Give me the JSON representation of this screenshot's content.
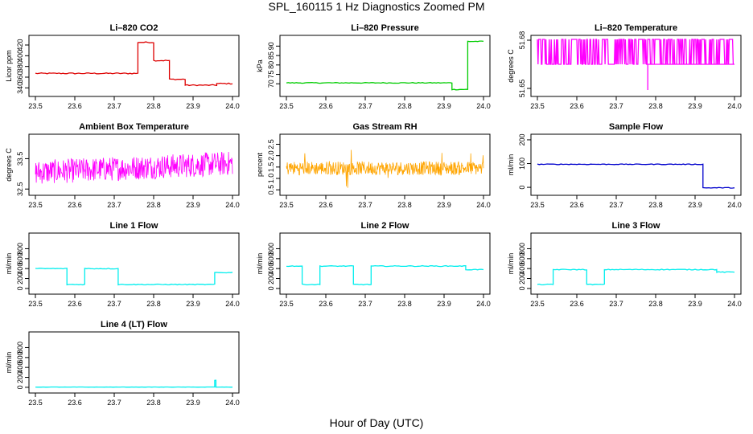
{
  "title": "SPL_160115  1 Hz Diagnostics Zoomed PM",
  "xlabel": "Hour of Day (UTC)",
  "chart_data": [
    {
      "type": "line",
      "title": "Li–820 CO2",
      "ylabel": "Licor ppm",
      "color": "#dd0000",
      "xticks": [
        "23.5",
        "23.6",
        "23.7",
        "23.8",
        "23.9",
        "24.0"
      ],
      "xlim": [
        23.5,
        24.0
      ],
      "ylim": [
        330,
        432
      ],
      "yticks": [
        "340",
        "360",
        "380",
        "400",
        "420"
      ],
      "noise": 1,
      "segments": [
        [
          23.5,
          23.76,
          367
        ],
        [
          23.76,
          23.8,
          425
        ],
        [
          23.8,
          23.84,
          391
        ],
        [
          23.84,
          23.88,
          356
        ],
        [
          23.88,
          23.96,
          345
        ],
        [
          23.96,
          24.0,
          348
        ]
      ]
    },
    {
      "type": "line",
      "title": "Li–820 Pressure",
      "ylabel": "kPa",
      "color": "#00cc00",
      "xticks": [
        "23.5",
        "23.6",
        "23.7",
        "23.8",
        "23.9",
        "24.0"
      ],
      "xlim": [
        23.5,
        24.0
      ],
      "ylim": [
        65,
        94
      ],
      "yticks": [
        "70",
        "75",
        "80",
        "85",
        "90"
      ],
      "noise": 0.2,
      "segments": [
        [
          23.5,
          23.92,
          70.5
        ],
        [
          23.92,
          23.96,
          67
        ],
        [
          23.96,
          24.0,
          92.5
        ]
      ]
    },
    {
      "type": "line",
      "title": "Li–820 Temperature",
      "ylabel": "degrees C",
      "color": "#ff00ff",
      "xticks": [
        "23.5",
        "23.6",
        "23.7",
        "23.8",
        "23.9",
        "24.0"
      ],
      "xlim": [
        23.5,
        24.0
      ],
      "ylim": [
        51.647,
        51.681
      ],
      "yticks": [
        "51.65",
        "51.68"
      ],
      "noise": 0,
      "segments": [
        [
          23.5,
          24.0,
          51.665
        ]
      ]
    },
    {
      "type": "line",
      "title": "Ambient Box Temperature",
      "ylabel": "degrees C",
      "color": "#ff00ff",
      "xticks": [
        "23.5",
        "23.6",
        "23.7",
        "23.8",
        "23.9",
        "24.0"
      ],
      "xlim": [
        23.5,
        24.0
      ],
      "ylim": [
        32.4,
        34.2
      ],
      "yticks": [
        "32.5",
        "33.5"
      ],
      "noise": 0.25,
      "segments": [
        [
          23.5,
          24.0,
          33.2
        ]
      ]
    },
    {
      "type": "line",
      "title": "Gas Stream RH",
      "ylabel": "percent",
      "color": "#ffa500",
      "xticks": [
        "23.5",
        "23.6",
        "23.7",
        "23.8",
        "23.9",
        "24.0"
      ],
      "xlim": [
        23.5,
        24.0
      ],
      "ylim": [
        0.4,
        2.8
      ],
      "yticks": [
        "0.5",
        "1.0",
        "1.5",
        "2.0",
        "2.5"
      ],
      "noise": 0.3,
      "segments": [
        [
          23.5,
          24.0,
          1.45
        ]
      ]
    },
    {
      "type": "line",
      "title": "Sample Flow",
      "ylabel": "ml/min",
      "color": "#0000cc",
      "xticks": [
        "23.5",
        "23.6",
        "23.7",
        "23.8",
        "23.9",
        "24.0"
      ],
      "xlim": [
        23.5,
        24.0
      ],
      "ylim": [
        -20,
        210
      ],
      "yticks": [
        "0",
        "100",
        "200"
      ],
      "noise": 1.5,
      "segments": [
        [
          23.5,
          23.92,
          97
        ],
        [
          23.92,
          24.0,
          -2
        ]
      ]
    },
    {
      "type": "line",
      "title": "Line 1 Flow",
      "ylabel": "ml/min",
      "color": "#00eeee",
      "xticks": [
        "23.5",
        "23.6",
        "23.7",
        "23.8",
        "23.9",
        "24.0"
      ],
      "xlim": [
        23.5,
        24.0
      ],
      "ylim": [
        -50,
        1050
      ],
      "yticks": [
        "0",
        "200",
        "400",
        "600",
        "800"
      ],
      "noise": 8,
      "segments": [
        [
          23.5,
          23.58,
          400
        ],
        [
          23.58,
          23.625,
          80
        ],
        [
          23.625,
          23.71,
          400
        ],
        [
          23.71,
          23.955,
          80
        ],
        [
          23.955,
          24.0,
          320
        ]
      ]
    },
    {
      "type": "line",
      "title": "Line 2 Flow",
      "ylabel": "ml/min",
      "color": "#00eeee",
      "xticks": [
        "23.5",
        "23.6",
        "23.7",
        "23.8",
        "23.9",
        "24.0"
      ],
      "xlim": [
        23.5,
        24.0
      ],
      "ylim": [
        -50,
        1050
      ],
      "yticks": [
        "0",
        "200",
        "400",
        "600",
        "800"
      ],
      "noise": 8,
      "segments": [
        [
          23.5,
          23.54,
          450
        ],
        [
          23.54,
          23.585,
          80
        ],
        [
          23.585,
          23.67,
          450
        ],
        [
          23.67,
          23.715,
          80
        ],
        [
          23.715,
          23.955,
          450
        ],
        [
          23.955,
          24.0,
          380
        ]
      ]
    },
    {
      "type": "line",
      "title": "Line 3 Flow",
      "ylabel": "ml/min",
      "color": "#00eeee",
      "xticks": [
        "23.5",
        "23.6",
        "23.7",
        "23.8",
        "23.9",
        "24.0"
      ],
      "xlim": [
        23.5,
        24.0
      ],
      "ylim": [
        -50,
        1050
      ],
      "yticks": [
        "0",
        "200",
        "400",
        "600",
        "800"
      ],
      "noise": 8,
      "segments": [
        [
          23.5,
          23.54,
          80
        ],
        [
          23.54,
          23.625,
          380
        ],
        [
          23.625,
          23.67,
          80
        ],
        [
          23.67,
          23.955,
          380
        ],
        [
          23.955,
          24.0,
          330
        ]
      ]
    },
    {
      "type": "line",
      "title": "Line 4 (LT) Flow",
      "ylabel": "ml/min",
      "color": "#00eeee",
      "xticks": [
        "23.5",
        "23.6",
        "23.7",
        "23.8",
        "23.9",
        "24.0"
      ],
      "xlim": [
        23.5,
        24.0
      ],
      "ylim": [
        -50,
        1050
      ],
      "yticks": [
        "0",
        "200",
        "400",
        "600",
        "800"
      ],
      "noise": 2,
      "segments": [
        [
          23.5,
          23.955,
          5
        ],
        [
          23.955,
          23.958,
          140
        ],
        [
          23.958,
          24.0,
          5
        ]
      ]
    }
  ]
}
